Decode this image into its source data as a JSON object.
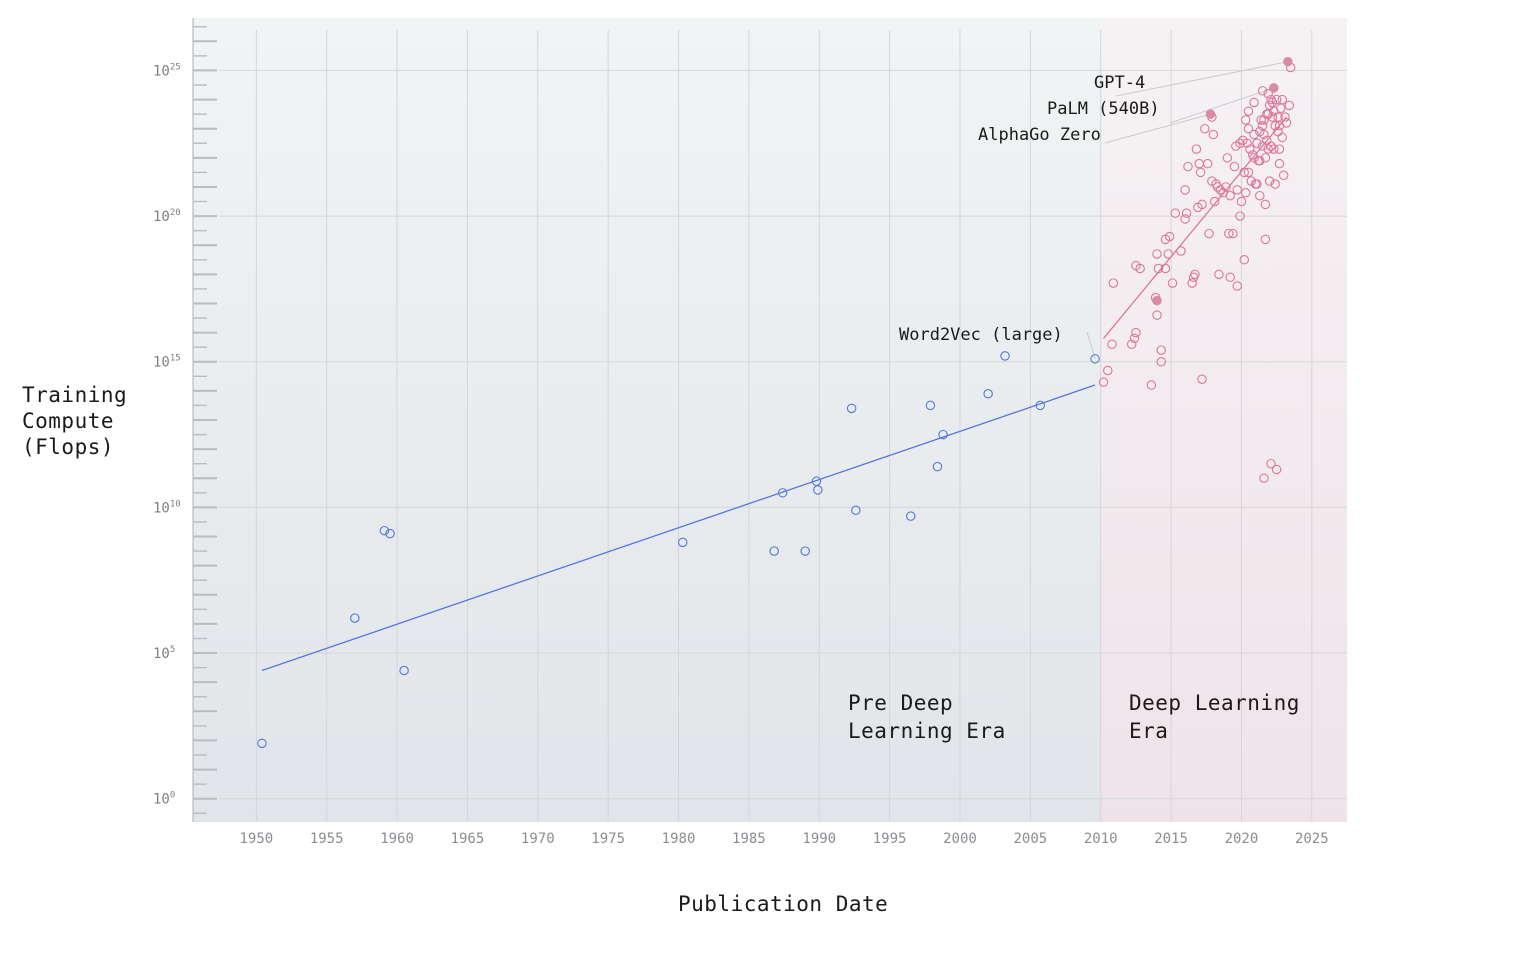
{
  "chart_data": {
    "type": "scatter",
    "xlabel": "Publication Date",
    "ylabel": [
      "Training",
      "Compute",
      "(Flops)"
    ],
    "xlim": [
      1945.5,
      2027.5
    ],
    "ylim": [
      -0.8,
      26.8
    ],
    "yscale": "log10",
    "x_ticks": [
      "1950",
      "1955",
      "1960",
      "1965",
      "1970",
      "1975",
      "1980",
      "1985",
      "1990",
      "1995",
      "2000",
      "2005",
      "2010",
      "2015",
      "2020",
      "2025"
    ],
    "y_ticks": [
      {
        "base": "10",
        "exp": "0",
        "value": 0
      },
      {
        "base": "10",
        "exp": "5",
        "value": 5
      },
      {
        "base": "10",
        "exp": "10",
        "value": 10
      },
      {
        "base": "10",
        "exp": "15",
        "value": 15
      },
      {
        "base": "10",
        "exp": "20",
        "value": 20
      },
      {
        "base": "10",
        "exp": "25",
        "value": 25
      }
    ],
    "grid": true,
    "regions": [
      {
        "label": [
          "Pre Deep",
          "Learning Era"
        ],
        "x_from": 1945.5,
        "x_to": 2010.0,
        "color": "#e4e9ec"
      },
      {
        "label": [
          "Deep Learning",
          "Era"
        ],
        "x_from": 2010.0,
        "x_to": 2027.5,
        "color": "#f2e6ec"
      }
    ],
    "series": [
      {
        "color": "#5577dd",
        "points": [
          [
            1950.4,
            1.9
          ],
          [
            1957.0,
            6.2
          ],
          [
            1959.1,
            9.2
          ],
          [
            1959.5,
            9.1
          ],
          [
            1960.5,
            4.4
          ],
          [
            1980.3,
            8.8
          ],
          [
            1986.8,
            8.5
          ],
          [
            1987.4,
            10.5
          ],
          [
            1989.0,
            8.5
          ],
          [
            1989.8,
            10.9
          ],
          [
            1989.9,
            10.6
          ],
          [
            1992.3,
            13.4
          ],
          [
            1992.6,
            9.9
          ],
          [
            1996.5,
            9.7
          ],
          [
            1997.9,
            13.5
          ],
          [
            1998.4,
            11.4
          ],
          [
            1998.8,
            12.5
          ],
          [
            2002.0,
            13.9
          ],
          [
            2003.2,
            15.2
          ],
          [
            2005.7,
            13.5
          ],
          [
            2009.6,
            15.1
          ]
        ],
        "trend": [
          [
            1950.4,
            4.4
          ],
          [
            2009.6,
            14.2
          ]
        ]
      },
      {
        "color": "#dd7799",
        "points": [
          [
            2010.2,
            14.3
          ],
          [
            2010.5,
            14.7
          ],
          [
            2010.8,
            15.6
          ],
          [
            2010.9,
            17.7
          ],
          [
            2012.2,
            15.6
          ],
          [
            2012.4,
            15.8
          ],
          [
            2012.5,
            16.0
          ],
          [
            2012.5,
            18.3
          ],
          [
            2012.8,
            18.2
          ],
          [
            2013.6,
            14.2
          ],
          [
            2013.9,
            17.2
          ],
          [
            2014.0,
            16.6
          ],
          [
            2014.0,
            18.7
          ],
          [
            2014.1,
            18.2
          ],
          [
            2014.3,
            15.0
          ],
          [
            2014.3,
            15.4
          ],
          [
            2014.6,
            18.2
          ],
          [
            2014.6,
            19.2
          ],
          [
            2014.8,
            18.7
          ],
          [
            2014.9,
            19.3
          ],
          [
            2015.1,
            17.7
          ],
          [
            2015.3,
            20.1
          ],
          [
            2015.7,
            18.8
          ],
          [
            2016.0,
            20.9
          ],
          [
            2016.0,
            19.9
          ],
          [
            2016.1,
            20.1
          ],
          [
            2016.2,
            21.7
          ],
          [
            2016.5,
            17.7
          ],
          [
            2016.6,
            17.9
          ],
          [
            2016.7,
            18.0
          ],
          [
            2016.8,
            22.3
          ],
          [
            2016.9,
            20.3
          ],
          [
            2017.0,
            21.8
          ],
          [
            2017.1,
            21.5
          ],
          [
            2017.2,
            14.4
          ],
          [
            2017.2,
            20.4
          ],
          [
            2017.4,
            23.0
          ],
          [
            2017.6,
            21.8
          ],
          [
            2017.7,
            19.4
          ],
          [
            2017.9,
            21.2
          ],
          [
            2017.9,
            23.4
          ],
          [
            2018.0,
            22.8
          ],
          [
            2018.1,
            20.5
          ],
          [
            2018.2,
            21.1
          ],
          [
            2018.3,
            21.0
          ],
          [
            2018.4,
            18.0
          ],
          [
            2018.5,
            20.9
          ],
          [
            2018.7,
            20.8
          ],
          [
            2018.9,
            21.0
          ],
          [
            2019.0,
            22.0
          ],
          [
            2019.1,
            19.4
          ],
          [
            2019.2,
            17.9
          ],
          [
            2019.2,
            20.7
          ],
          [
            2019.4,
            19.4
          ],
          [
            2019.5,
            21.7
          ],
          [
            2019.6,
            22.4
          ],
          [
            2019.7,
            20.9
          ],
          [
            2019.7,
            17.6
          ],
          [
            2019.9,
            22.5
          ],
          [
            2019.9,
            20.0
          ],
          [
            2020.0,
            20.5
          ],
          [
            2020.1,
            22.6
          ],
          [
            2020.2,
            18.5
          ],
          [
            2020.2,
            21.5
          ],
          [
            2020.3,
            23.3
          ],
          [
            2020.3,
            20.8
          ],
          [
            2020.4,
            22.5
          ],
          [
            2020.5,
            21.5
          ],
          [
            2020.5,
            23.6
          ],
          [
            2020.6,
            22.3
          ],
          [
            2020.7,
            21.2
          ],
          [
            2020.8,
            22.1
          ],
          [
            2020.9,
            22.8
          ],
          [
            2020.9,
            22.0
          ],
          [
            2021.0,
            21.1
          ],
          [
            2021.1,
            21.1
          ],
          [
            2021.1,
            22.5
          ],
          [
            2021.2,
            21.9
          ],
          [
            2021.3,
            20.7
          ],
          [
            2021.3,
            21.9
          ],
          [
            2021.3,
            22.9
          ],
          [
            2021.4,
            23.3
          ],
          [
            2021.5,
            22.4
          ],
          [
            2021.5,
            23.1
          ],
          [
            2021.6,
            23.3
          ],
          [
            2021.6,
            22.8
          ],
          [
            2021.7,
            20.4
          ],
          [
            2021.7,
            19.2
          ],
          [
            2021.7,
            22.0
          ],
          [
            2021.8,
            22.6
          ],
          [
            2021.8,
            23.5
          ],
          [
            2021.9,
            24.2
          ],
          [
            2021.9,
            22.3
          ],
          [
            2021.9,
            23.5
          ],
          [
            2022.0,
            23.8
          ],
          [
            2022.0,
            21.2
          ],
          [
            2022.1,
            22.4
          ],
          [
            2022.1,
            22.4
          ],
          [
            2022.2,
            23.4
          ],
          [
            2022.2,
            23.9
          ],
          [
            2022.3,
            22.3
          ],
          [
            2022.3,
            23.6
          ],
          [
            2022.4,
            21.1
          ],
          [
            2022.4,
            23.1
          ],
          [
            2022.5,
            24.0
          ],
          [
            2022.6,
            23.4
          ],
          [
            2022.6,
            22.9
          ],
          [
            2022.7,
            21.8
          ],
          [
            2022.7,
            23.1
          ],
          [
            2022.8,
            23.7
          ],
          [
            2022.9,
            22.7
          ],
          [
            2022.9,
            24.0
          ],
          [
            2023.0,
            21.4
          ],
          [
            2023.1,
            23.4
          ],
          [
            2023.2,
            23.2
          ],
          [
            2023.4,
            23.8
          ],
          [
            2023.5,
            25.1
          ],
          [
            2021.6,
            11.0
          ],
          [
            2022.1,
            11.5
          ],
          [
            2022.5,
            11.3
          ],
          [
            2020.5,
            23.0
          ],
          [
            2020.9,
            23.9
          ],
          [
            2021.5,
            24.3
          ],
          [
            2022.1,
            24.0
          ],
          [
            2022.7,
            22.3
          ]
        ],
        "trend": [
          [
            2010.2,
            15.8
          ],
          [
            2023.2,
            23.4
          ]
        ]
      }
    ],
    "annotations": [
      {
        "label": "GPT-4",
        "x": 2023.3,
        "y": 25.3,
        "highlight": true
      },
      {
        "label": "PaLM (540B)",
        "x": 2022.3,
        "y": 24.4,
        "highlight": true
      },
      {
        "label": "AlphaGo Zero",
        "x": 2017.8,
        "y": 23.5,
        "highlight": true
      },
      {
        "label": "Word2Vec (large)",
        "x": 2009.6,
        "y": 15.1,
        "highlight": false
      },
      {
        "label": "",
        "x": 2014.0,
        "y": 17.1,
        "highlight": true
      }
    ]
  }
}
